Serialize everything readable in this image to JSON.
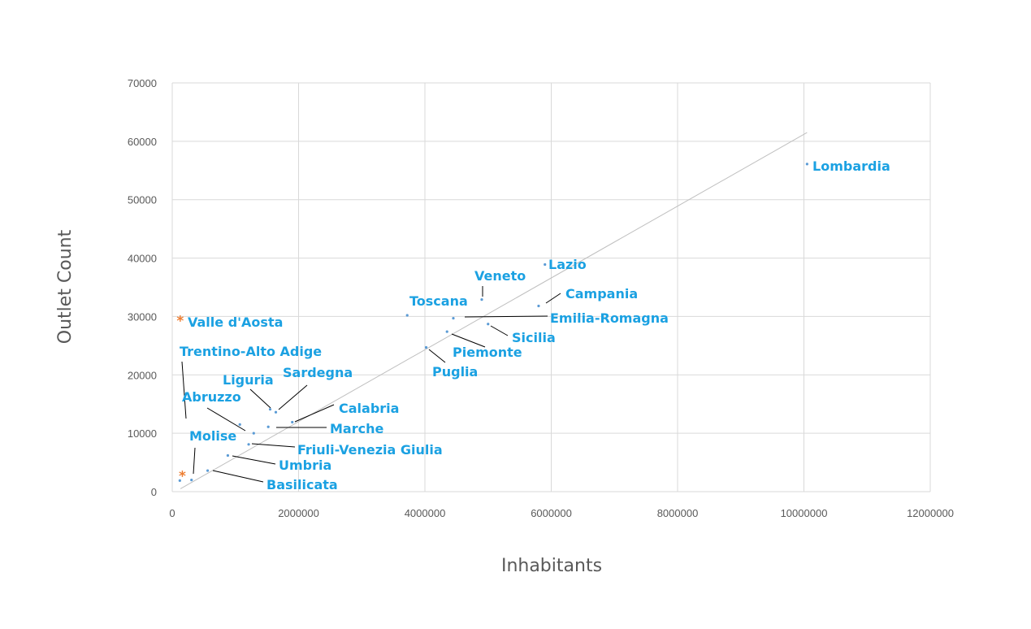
{
  "colors": {
    "label": "#1ba1e2",
    "point": "#5b9bd5",
    "outlier": "#ed7d31",
    "grid": "#d9d9d9",
    "trendline": "#bfbfbf",
    "leader": "#000000",
    "axis_text": "#595959"
  },
  "chart_data": {
    "type": "scatter",
    "title": "",
    "xlabel": "Inhabitants",
    "ylabel": "Outlet Count",
    "xlim": [
      0,
      12000000
    ],
    "ylim": [
      0,
      70000
    ],
    "xticks": [
      0,
      2000000,
      4000000,
      6000000,
      8000000,
      10000000,
      12000000
    ],
    "yticks": [
      0,
      10000,
      20000,
      30000,
      40000,
      50000,
      60000,
      70000
    ],
    "x_tick_labels": [
      "0",
      "2000000",
      "4000000",
      "6000000",
      "8000000",
      "10000000",
      "12000000"
    ],
    "y_tick_labels": [
      "0",
      "10000",
      "20000",
      "30000",
      "40000",
      "50000",
      "60000",
      "70000"
    ],
    "grid": true,
    "trendline": {
      "x": [
        130000,
        10050000
      ],
      "y": [
        500,
        61500
      ]
    },
    "points": [
      {
        "name": "Lombardia",
        "x": 10050000,
        "y": 56100,
        "marker": "dot"
      },
      {
        "name": "Lazio",
        "x": 5900000,
        "y": 38900,
        "marker": "dot"
      },
      {
        "name": "Veneto",
        "x": 4900000,
        "y": 32900,
        "marker": "dot"
      },
      {
        "name": "Campania",
        "x": 5800000,
        "y": 31800,
        "marker": "dot"
      },
      {
        "name": "Toscana",
        "x": 3720000,
        "y": 30200,
        "marker": "dot"
      },
      {
        "name": "Emilia-Romagna",
        "x": 4450000,
        "y": 29700,
        "marker": "dot"
      },
      {
        "name": "Sicilia",
        "x": 5000000,
        "y": 28700,
        "marker": "dot"
      },
      {
        "name": "Piemonte",
        "x": 4350000,
        "y": 27400,
        "marker": "dot"
      },
      {
        "name": "Puglia",
        "x": 4020000,
        "y": 24700,
        "marker": "dot"
      },
      {
        "name": "Valle d'Aosta",
        "x": 126000,
        "y": 29700,
        "marker": "star"
      },
      {
        "name": "Trentino-Alto Adige",
        "x": 1070000,
        "y": 11500,
        "marker": "dot"
      },
      {
        "name": "Liguria",
        "x": 1550000,
        "y": 14100,
        "marker": "dot"
      },
      {
        "name": "Sardegna",
        "x": 1640000,
        "y": 13600,
        "marker": "dot"
      },
      {
        "name": "Calabria",
        "x": 1900000,
        "y": 11900,
        "marker": "dot"
      },
      {
        "name": "Abruzzo",
        "x": 1290000,
        "y": 10000,
        "marker": "dot"
      },
      {
        "name": "Marche",
        "x": 1520000,
        "y": 11100,
        "marker": "dot"
      },
      {
        "name": "Friuli-Venezia Giulia",
        "x": 1210000,
        "y": 8100,
        "marker": "dot"
      },
      {
        "name": "Umbria",
        "x": 880000,
        "y": 6200,
        "marker": "dot"
      },
      {
        "name": "Basilicata",
        "x": 560000,
        "y": 3600,
        "marker": "dot"
      },
      {
        "name": "Molise",
        "x": 305000,
        "y": 2000,
        "marker": "dot"
      },
      {
        "name": "",
        "x": 120000,
        "y": 1900,
        "marker": "dot"
      },
      {
        "name": "",
        "x": 160000,
        "y": 3100,
        "marker": "star"
      }
    ]
  }
}
